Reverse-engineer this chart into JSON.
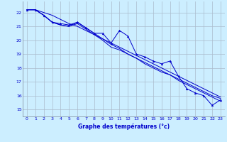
{
  "xlabel": "Graphe des températures (°c)",
  "xlim": [
    -0.5,
    23.5
  ],
  "ylim": [
    14.5,
    22.8
  ],
  "yticks": [
    15,
    16,
    17,
    18,
    19,
    20,
    21,
    22
  ],
  "xticks": [
    0,
    1,
    2,
    3,
    4,
    5,
    6,
    7,
    8,
    9,
    10,
    11,
    12,
    13,
    14,
    15,
    16,
    17,
    18,
    19,
    20,
    21,
    22,
    23
  ],
  "background_color": "#cceeff",
  "grid_color": "#aabbcc",
  "line_color": "#0000cc",
  "hours": [
    0,
    1,
    2,
    3,
    4,
    5,
    6,
    7,
    8,
    9,
    10,
    11,
    12,
    13,
    14,
    15,
    16,
    17,
    18,
    19,
    20,
    21,
    22,
    23
  ],
  "temp_main": [
    22.2,
    22.2,
    21.8,
    21.3,
    21.2,
    21.1,
    21.3,
    20.9,
    20.5,
    20.5,
    19.8,
    20.7,
    20.3,
    19.0,
    18.8,
    18.5,
    18.3,
    18.5,
    17.4,
    16.5,
    16.2,
    16.0,
    15.3,
    15.7
  ],
  "temp_line2": [
    22.2,
    22.2,
    21.8,
    21.3,
    21.1,
    21.0,
    21.2,
    20.8,
    20.4,
    20.0,
    19.5,
    19.3,
    19.0,
    18.7,
    18.4,
    18.1,
    17.8,
    17.5,
    17.2,
    16.9,
    16.6,
    16.3,
    16.0,
    15.8
  ],
  "temp_line3": [
    22.2,
    22.2,
    21.8,
    21.3,
    21.1,
    21.0,
    21.3,
    20.9,
    20.5,
    20.1,
    19.7,
    19.4,
    19.0,
    18.7,
    18.3,
    18.0,
    17.7,
    17.5,
    17.1,
    16.8,
    16.5,
    16.2,
    15.9,
    15.6
  ],
  "temp_line4": [
    22.2,
    22.2,
    22.0,
    21.8,
    21.5,
    21.2,
    21.0,
    20.7,
    20.4,
    20.1,
    19.8,
    19.5,
    19.2,
    18.9,
    18.6,
    18.3,
    18.0,
    17.7,
    17.4,
    17.1,
    16.8,
    16.5,
    16.2,
    15.9
  ]
}
